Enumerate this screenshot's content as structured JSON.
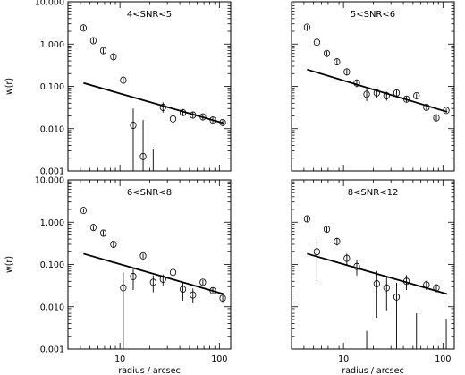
{
  "chart_data": {
    "type": "scatter",
    "xlabel": "radius / arcsec",
    "ylabel": "w(r)",
    "xscale": "log",
    "yscale": "log",
    "xlim": [
      3,
      130
    ],
    "ylim": [
      0.001,
      10
    ],
    "x_ticks": [
      {
        "value": 10,
        "label": "10"
      },
      {
        "value": 100,
        "label": "100"
      }
    ],
    "y_ticks": [
      {
        "value": 10,
        "label": "10.000"
      },
      {
        "value": 1,
        "label": "1.000"
      },
      {
        "value": 0.1,
        "label": "0.100"
      },
      {
        "value": 0.01,
        "label": "0.010"
      },
      {
        "value": 0.001,
        "label": "0.001"
      }
    ],
    "panels": [
      {
        "title": "4<SNR<5",
        "fit": {
          "x": [
            4.3,
            110
          ],
          "y": [
            0.12,
            0.0135
          ]
        },
        "points": [
          {
            "x": 4.3,
            "y": 2.4,
            "lo": 2.1,
            "hi": 2.7
          },
          {
            "x": 5.4,
            "y": 1.2,
            "lo": 1.05,
            "hi": 1.35
          },
          {
            "x": 6.8,
            "y": 0.7,
            "lo": 0.6,
            "hi": 0.8
          },
          {
            "x": 8.6,
            "y": 0.5,
            "lo": 0.42,
            "hi": 0.58
          },
          {
            "x": 10.8,
            "y": 0.14,
            "lo": 0.12,
            "hi": 0.16
          },
          {
            "x": 13.6,
            "y": 0.012,
            "lo": 0.001,
            "hi": 0.03
          },
          {
            "x": 17.1,
            "y": 0.0022,
            "lo": 0.001,
            "hi": 0.016
          },
          {
            "x": 21.6,
            "y": null,
            "lo": 0.001,
            "hi": 0.0032
          },
          {
            "x": 27.1,
            "y": 0.032,
            "lo": 0.024,
            "hi": 0.042
          },
          {
            "x": 34.2,
            "y": 0.017,
            "lo": 0.011,
            "hi": 0.026
          },
          {
            "x": 43.0,
            "y": 0.024,
            "lo": 0.02,
            "hi": 0.029
          },
          {
            "x": 54.2,
            "y": 0.021,
            "lo": 0.018,
            "hi": 0.025
          },
          {
            "x": 68.2,
            "y": 0.019,
            "lo": 0.016,
            "hi": 0.022
          },
          {
            "x": 85.9,
            "y": 0.016,
            "lo": 0.014,
            "hi": 0.019
          },
          {
            "x": 108.0,
            "y": 0.014,
            "lo": 0.012,
            "hi": 0.016
          }
        ]
      },
      {
        "title": "5<SNR<6",
        "fit": {
          "x": [
            4.3,
            110
          ],
          "y": [
            0.25,
            0.025
          ]
        },
        "points": [
          {
            "x": 4.3,
            "y": 2.5,
            "lo": 2.2,
            "hi": 2.8
          },
          {
            "x": 5.4,
            "y": 1.1,
            "lo": 0.95,
            "hi": 1.25
          },
          {
            "x": 6.8,
            "y": 0.6,
            "lo": 0.52,
            "hi": 0.68
          },
          {
            "x": 8.6,
            "y": 0.38,
            "lo": 0.32,
            "hi": 0.44
          },
          {
            "x": 10.8,
            "y": 0.22,
            "lo": 0.18,
            "hi": 0.26
          },
          {
            "x": 13.6,
            "y": 0.12,
            "lo": 0.095,
            "hi": 0.145
          },
          {
            "x": 17.1,
            "y": 0.065,
            "lo": 0.045,
            "hi": 0.085
          },
          {
            "x": 21.6,
            "y": 0.07,
            "lo": 0.052,
            "hi": 0.088
          },
          {
            "x": 27.1,
            "y": 0.06,
            "lo": 0.046,
            "hi": 0.075
          },
          {
            "x": 34.2,
            "y": 0.07,
            "lo": 0.058,
            "hi": 0.082
          },
          {
            "x": 43.0,
            "y": 0.05,
            "lo": 0.042,
            "hi": 0.058
          },
          {
            "x": 54.2,
            "y": 0.06,
            "lo": 0.052,
            "hi": 0.068
          },
          {
            "x": 68.2,
            "y": 0.032,
            "lo": 0.028,
            "hi": 0.036
          },
          {
            "x": 85.9,
            "y": 0.018,
            "lo": 0.015,
            "hi": 0.022
          },
          {
            "x": 108.0,
            "y": 0.027,
            "lo": 0.024,
            "hi": 0.03
          }
        ]
      },
      {
        "title": "6<SNR<8",
        "fit": {
          "x": [
            4.3,
            110
          ],
          "y": [
            0.18,
            0.02
          ]
        },
        "points": [
          {
            "x": 4.3,
            "y": 1.9,
            "lo": 1.7,
            "hi": 2.1
          },
          {
            "x": 5.4,
            "y": 0.75,
            "lo": 0.65,
            "hi": 0.85
          },
          {
            "x": 6.8,
            "y": 0.55,
            "lo": 0.47,
            "hi": 0.63
          },
          {
            "x": 8.6,
            "y": 0.3,
            "lo": 0.25,
            "hi": 0.35
          },
          {
            "x": 10.8,
            "y": 0.028,
            "lo": 0.001,
            "hi": 0.065
          },
          {
            "x": 13.6,
            "y": 0.052,
            "lo": 0.025,
            "hi": 0.08
          },
          {
            "x": 17.1,
            "y": 0.16,
            "lo": 0.14,
            "hi": 0.18
          },
          {
            "x": 21.6,
            "y": 0.038,
            "lo": 0.022,
            "hi": 0.055
          },
          {
            "x": 27.1,
            "y": 0.045,
            "lo": 0.032,
            "hi": 0.058
          },
          {
            "x": 34.2,
            "y": 0.065,
            "lo": 0.055,
            "hi": 0.076
          },
          {
            "x": 43.0,
            "y": 0.026,
            "lo": 0.014,
            "hi": 0.038
          },
          {
            "x": 54.2,
            "y": 0.019,
            "lo": 0.012,
            "hi": 0.027
          },
          {
            "x": 68.2,
            "y": 0.038,
            "lo": 0.033,
            "hi": 0.043
          },
          {
            "x": 85.9,
            "y": 0.024,
            "lo": 0.02,
            "hi": 0.028
          },
          {
            "x": 108.0,
            "y": 0.016,
            "lo": 0.013,
            "hi": 0.019
          }
        ]
      },
      {
        "title": "8<SNR<12",
        "fit": {
          "x": [
            4.3,
            110
          ],
          "y": [
            0.18,
            0.02
          ]
        },
        "points": [
          {
            "x": 4.3,
            "y": 1.2,
            "lo": 1.02,
            "hi": 1.38
          },
          {
            "x": 5.4,
            "y": 0.2,
            "lo": 0.035,
            "hi": 0.4
          },
          {
            "x": 6.8,
            "y": 0.68,
            "lo": 0.58,
            "hi": 0.78
          },
          {
            "x": 8.6,
            "y": 0.35,
            "lo": 0.28,
            "hi": 0.42
          },
          {
            "x": 10.8,
            "y": 0.14,
            "lo": 0.1,
            "hi": 0.18
          },
          {
            "x": 13.6,
            "y": 0.09,
            "lo": 0.055,
            "hi": 0.13
          },
          {
            "x": 17.1,
            "y": null,
            "lo": 0.001,
            "hi": 0.0027
          },
          {
            "x": 21.6,
            "y": 0.035,
            "lo": 0.0055,
            "hi": 0.07
          },
          {
            "x": 27.1,
            "y": 0.028,
            "lo": 0.0082,
            "hi": 0.05
          },
          {
            "x": 34.2,
            "y": 0.017,
            "lo": 0.001,
            "hi": 0.037
          },
          {
            "x": 43.0,
            "y": 0.04,
            "lo": 0.025,
            "hi": 0.056
          },
          {
            "x": 54.2,
            "y": null,
            "lo": 0.001,
            "hi": 0.007
          },
          {
            "x": 68.2,
            "y": 0.033,
            "lo": 0.025,
            "hi": 0.041
          },
          {
            "x": 85.9,
            "y": 0.028,
            "lo": 0.022,
            "hi": 0.034
          },
          {
            "x": 108.0,
            "y": null,
            "lo": 0.001,
            "hi": 0.0052
          }
        ]
      }
    ]
  }
}
